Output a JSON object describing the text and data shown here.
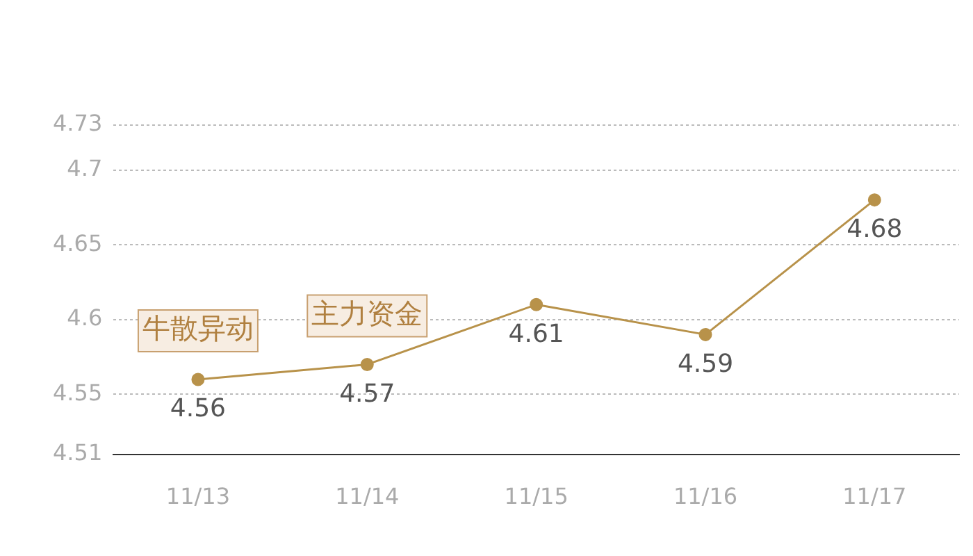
{
  "chart_data": {
    "type": "line",
    "categories": [
      "11/13",
      "11/14",
      "11/15",
      "11/16",
      "11/17"
    ],
    "series": [
      {
        "color": "#b8924a",
        "values": [
          4.56,
          4.57,
          4.61,
          4.59,
          4.68
        ]
      }
    ],
    "ylim": [
      4.51,
      4.73
    ],
    "yticks": [
      4.51,
      4.55,
      4.6,
      4.65,
      4.7,
      4.73
    ],
    "grid": "y",
    "data_labels": true,
    "marker": "circle",
    "line_style": "solid",
    "annotations": [
      {
        "text": "牛散异动",
        "x": "11/13",
        "y": 4.56
      },
      {
        "text": "主力资金",
        "x": "11/14",
        "y": 4.57
      }
    ]
  }
}
